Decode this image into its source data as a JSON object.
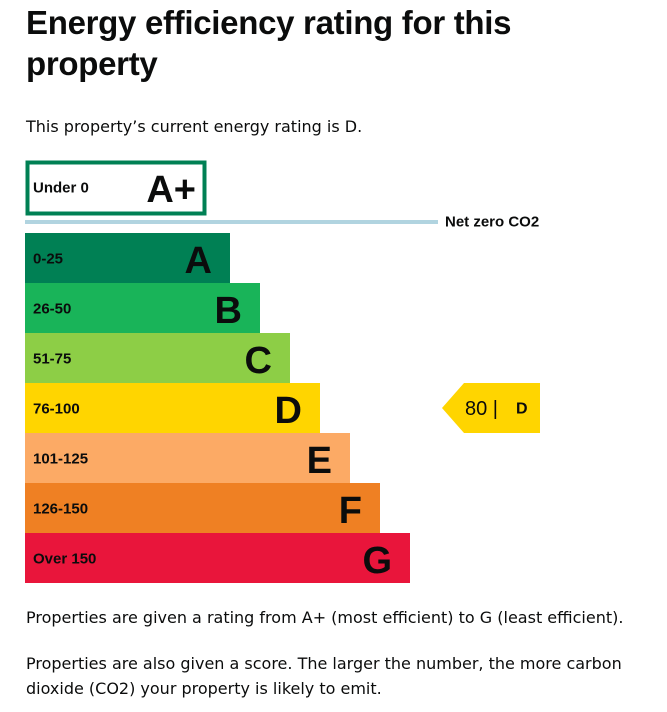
{
  "heading": "Energy efficiency rating for this property",
  "current_rating_text": "This property’s current energy rating is D.",
  "chart_data": {
    "type": "bar",
    "title": "",
    "xlabel": "",
    "ylabel": "",
    "categories": [
      "A+",
      "A",
      "B",
      "C",
      "D",
      "E",
      "F",
      "G"
    ],
    "score_ranges": [
      "Under 0",
      "0-25",
      "26-50",
      "51-75",
      "76-100",
      "101-125",
      "126-150",
      "Over 150"
    ],
    "colors": [
      "#ffffff",
      "#008054",
      "#19b459",
      "#8dce46",
      "#ffd500",
      "#fcaa65",
      "#ef8023",
      "#e9153b"
    ],
    "outline_color": "#008054",
    "threshold_label": "Net zero CO2",
    "threshold_color": "#b1d4e0",
    "current": {
      "score": 80,
      "separator": "|",
      "rating": "D",
      "color": "#ffd500"
    }
  },
  "explanation_1": "Properties are given a rating from A+ (most efficient) to G (least efficient).",
  "explanation_2": "Properties are also given a score. The larger the number, the more carbon dioxide (CO2) your property is likely to emit."
}
